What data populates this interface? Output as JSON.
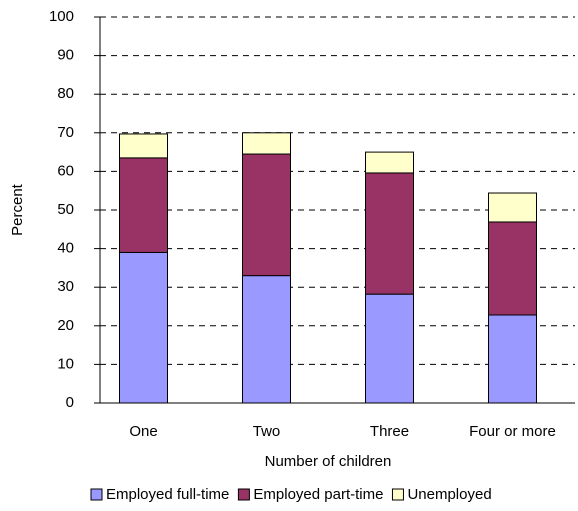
{
  "chart_data": {
    "type": "stacked_bar",
    "categories": [
      "One",
      "Two",
      "Three",
      "Four or more"
    ],
    "series": [
      {
        "name": "Employed full-time",
        "color": "#9999ff",
        "values": [
          39,
          33,
          28.2,
          22.8
        ]
      },
      {
        "name": "Employed part-time",
        "color": "#993366",
        "values": [
          24.5,
          31.5,
          31.4,
          24.1
        ]
      },
      {
        "name": "Unemployed",
        "color": "#ffffcc",
        "values": [
          6.2,
          5.5,
          5.4,
          7.5
        ]
      }
    ],
    "x_label": "Number of children",
    "y_label": "Percent",
    "ylim": [
      0,
      100
    ],
    "yticks": [
      0,
      10,
      20,
      30,
      40,
      50,
      60,
      70,
      80,
      90,
      100
    ],
    "grid": true,
    "legend": "bottom"
  }
}
